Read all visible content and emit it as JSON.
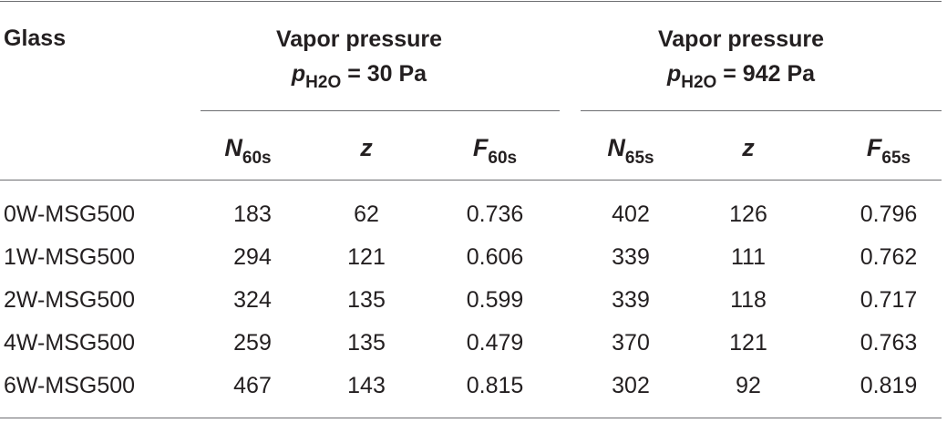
{
  "table": {
    "stub_header": "Glass",
    "groups": [
      {
        "title": "Vapor pressure",
        "pressure_symbol": "p",
        "pressure_sub": "H2O",
        "pressure_value": "= 30 Pa",
        "columns": [
          {
            "symbol": "N",
            "sub": "60s"
          },
          {
            "symbol": "z",
            "sub": ""
          },
          {
            "symbol": "F",
            "sub": "60s"
          }
        ]
      },
      {
        "title": "Vapor pressure",
        "pressure_symbol": "p",
        "pressure_sub": "H2O",
        "pressure_value": "= 942 Pa",
        "columns": [
          {
            "symbol": "N",
            "sub": "65s"
          },
          {
            "symbol": "z",
            "sub": ""
          },
          {
            "symbol": "F",
            "sub": "65s"
          }
        ]
      }
    ],
    "rows": [
      {
        "glass": "0W-MSG500",
        "values": [
          "183",
          "62",
          "0.736",
          "402",
          "126",
          "0.796"
        ]
      },
      {
        "glass": "1W-MSG500",
        "values": [
          "294",
          "121",
          "0.606",
          "339",
          "111",
          "0.762"
        ]
      },
      {
        "glass": "2W-MSG500",
        "values": [
          "324",
          "135",
          "0.599",
          "339",
          "118",
          "0.717"
        ]
      },
      {
        "glass": "4W-MSG500",
        "values": [
          "259",
          "135",
          "0.479",
          "370",
          "121",
          "0.763"
        ]
      },
      {
        "glass": "6W-MSG500",
        "values": [
          "467",
          "143",
          "0.815",
          "302",
          "92",
          "0.819"
        ]
      }
    ]
  }
}
